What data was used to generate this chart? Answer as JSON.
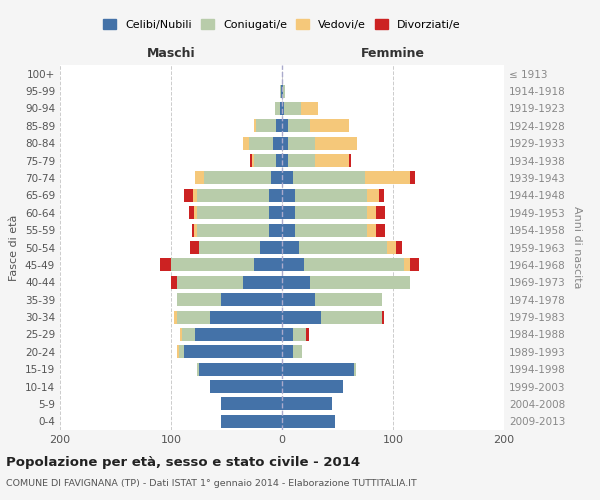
{
  "age_groups": [
    "0-4",
    "5-9",
    "10-14",
    "15-19",
    "20-24",
    "25-29",
    "30-34",
    "35-39",
    "40-44",
    "45-49",
    "50-54",
    "55-59",
    "60-64",
    "65-69",
    "70-74",
    "75-79",
    "80-84",
    "85-89",
    "90-94",
    "95-99",
    "100+"
  ],
  "birth_years": [
    "2009-2013",
    "2004-2008",
    "1999-2003",
    "1994-1998",
    "1989-1993",
    "1984-1988",
    "1979-1983",
    "1974-1978",
    "1969-1973",
    "1964-1968",
    "1959-1963",
    "1954-1958",
    "1949-1953",
    "1944-1948",
    "1939-1943",
    "1934-1938",
    "1929-1933",
    "1924-1928",
    "1919-1923",
    "1914-1918",
    "≤ 1913"
  ],
  "maschi": {
    "celibi": [
      55,
      55,
      65,
      75,
      88,
      78,
      65,
      55,
      35,
      25,
      20,
      12,
      12,
      12,
      10,
      5,
      8,
      5,
      2,
      1,
      0
    ],
    "coniugati": [
      0,
      0,
      0,
      2,
      5,
      12,
      30,
      40,
      60,
      75,
      55,
      65,
      65,
      65,
      60,
      20,
      22,
      18,
      4,
      1,
      0
    ],
    "vedovi": [
      0,
      0,
      0,
      0,
      2,
      2,
      2,
      0,
      0,
      0,
      0,
      2,
      2,
      3,
      8,
      2,
      5,
      2,
      0,
      0,
      0
    ],
    "divorziati": [
      0,
      0,
      0,
      0,
      0,
      0,
      0,
      0,
      5,
      10,
      8,
      2,
      5,
      8,
      0,
      2,
      0,
      0,
      0,
      0,
      0
    ]
  },
  "femmine": {
    "nubili": [
      48,
      45,
      55,
      65,
      10,
      10,
      35,
      30,
      25,
      20,
      15,
      12,
      12,
      12,
      10,
      5,
      5,
      5,
      2,
      1,
      0
    ],
    "coniugate": [
      0,
      0,
      0,
      2,
      8,
      12,
      55,
      60,
      90,
      90,
      80,
      65,
      65,
      65,
      65,
      25,
      25,
      20,
      15,
      2,
      0
    ],
    "vedove": [
      0,
      0,
      0,
      0,
      0,
      0,
      0,
      0,
      0,
      5,
      8,
      8,
      8,
      10,
      40,
      30,
      38,
      35,
      15,
      0,
      0
    ],
    "divorziate": [
      0,
      0,
      0,
      0,
      0,
      2,
      2,
      0,
      0,
      8,
      5,
      8,
      8,
      5,
      5,
      2,
      0,
      0,
      0,
      0,
      0
    ]
  },
  "colors": {
    "celibi_nubili": "#4472a8",
    "coniugati": "#b8ccaa",
    "vedovi": "#f5c87a",
    "divorziati": "#cc2222"
  },
  "title": "Popolazione per età, sesso e stato civile - 2014",
  "subtitle": "COMUNE DI FAVIGNANA (TP) - Dati ISTAT 1° gennaio 2014 - Elaborazione TUTTITALIA.IT",
  "ylabel": "Fasce di età",
  "ylabel_right": "Anni di nascita",
  "xlabel_maschi": "Maschi",
  "xlabel_femmine": "Femmine",
  "xlim": 200,
  "bg_color": "#f5f5f5",
  "plot_bg": "#ffffff",
  "legend_labels": [
    "Celibi/Nubili",
    "Coniugati/e",
    "Vedovi/e",
    "Divorziati/e"
  ]
}
